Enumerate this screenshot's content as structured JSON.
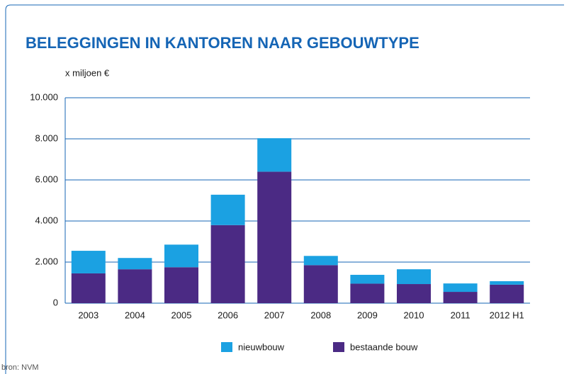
{
  "chart_data": {
    "type": "stacked_bar",
    "title": "BELEGGINGEN IN KANTOREN NAAR GEBOUWTYPE",
    "y_label": "x miljoen €",
    "source": "bron: NVM",
    "categories": [
      "2003",
      "2004",
      "2005",
      "2006",
      "2007",
      "2008",
      "2009",
      "2010",
      "2011",
      "2012 H1"
    ],
    "series": [
      {
        "name": "nieuwbouw",
        "color": "#1ba1e2",
        "values": [
          1100,
          550,
          1100,
          1480,
          1630,
          450,
          430,
          720,
          410,
          170
        ]
      },
      {
        "name": "bestaande bouw",
        "color": "#4b2a84",
        "values": [
          1450,
          1650,
          1750,
          3800,
          6400,
          1850,
          950,
          930,
          550,
          900
        ]
      }
    ],
    "ylim": [
      0,
      10000
    ],
    "yticks": [
      0,
      {
        "value": 2000,
        "label": "2.000"
      },
      {
        "value": 4000,
        "label": "4.000"
      },
      {
        "value": 6000,
        "label": "6.000"
      },
      {
        "value": 8000,
        "label": "8.000"
      },
      {
        "value": 10000,
        "label": "10.000"
      }
    ],
    "grid": true,
    "grid_color": "#1565b5"
  }
}
